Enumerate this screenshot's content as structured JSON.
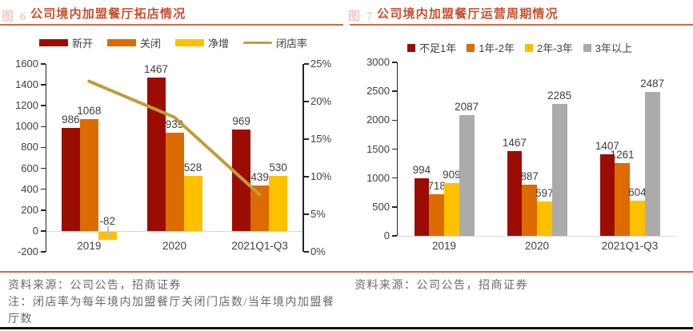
{
  "figures": [
    {
      "ghost_label": "图 6",
      "title": "公司境内加盟餐厅拓店情况",
      "source": "资料来源：公司公告，招商证券",
      "note": "注：闭店率为每年境内加盟餐厅关闭门店数/当年境内加盟餐厅数"
    },
    {
      "ghost_label": "图 7",
      "title": "公司境内加盟餐厅运营周期情况",
      "source": "资料来源：公司公告，招商证券",
      "note": ""
    }
  ],
  "colors": {
    "title_red": "#c8502e",
    "rule_orange": "#ce6b4c",
    "dark_red": "#9b0d02",
    "orange": "#dc6b02",
    "yellow": "#ffc000",
    "khaki_line": "#be9e3b",
    "gray_bar": "#ababab",
    "axis_black": "#262626",
    "baseline_gray": "#d9d9d9",
    "label_gray": "#3f3f3f",
    "footer_gray": "#696969"
  },
  "chart_data": [
    {
      "type": "bar",
      "title": "公司境内加盟餐厅拓店情况",
      "categories": [
        "2019",
        "2020",
        "2021Q1-Q3"
      ],
      "series": [
        {
          "name": "新开",
          "color": "#9b0d02",
          "values": [
            986,
            1467,
            969
          ]
        },
        {
          "name": "关闭",
          "color": "#dc6b02",
          "values": [
            1068,
            939,
            439
          ]
        },
        {
          "name": "净增",
          "color": "#ffc000",
          "values": [
            -82,
            528,
            530
          ]
        }
      ],
      "line_series": [
        {
          "name": "闭店率",
          "color": "#be9e3b",
          "axis": "right",
          "values_percent": [
            22.7,
            17.9,
            7.6
          ]
        }
      ],
      "y_left": {
        "min": -200,
        "max": 1600,
        "step": 200,
        "suffix": ""
      },
      "y_right": {
        "min": 0,
        "max": 25,
        "step": 5,
        "suffix": "%"
      },
      "legend_position": "top",
      "grid": false,
      "data_labels": true
    },
    {
      "type": "bar",
      "title": "公司境内加盟餐厅运营周期情况",
      "categories": [
        "2019",
        "2020",
        "2021Q1-Q3"
      ],
      "series": [
        {
          "name": "不足1年",
          "color": "#9b0d02",
          "values": [
            994,
            1467,
            1407
          ]
        },
        {
          "name": "1年-2年",
          "color": "#dc6b02",
          "values": [
            718,
            887,
            1261
          ]
        },
        {
          "name": "2年-3年",
          "color": "#ffc000",
          "values": [
            909,
            597,
            604
          ]
        },
        {
          "name": "3年以上",
          "color": "#ababab",
          "values": [
            2087,
            2285,
            2487
          ]
        }
      ],
      "line_series": [],
      "y_left": {
        "min": 0,
        "max": 3000,
        "step": 500,
        "suffix": ""
      },
      "y_right": null,
      "legend_position": "top",
      "grid": false,
      "data_labels": true
    }
  ]
}
